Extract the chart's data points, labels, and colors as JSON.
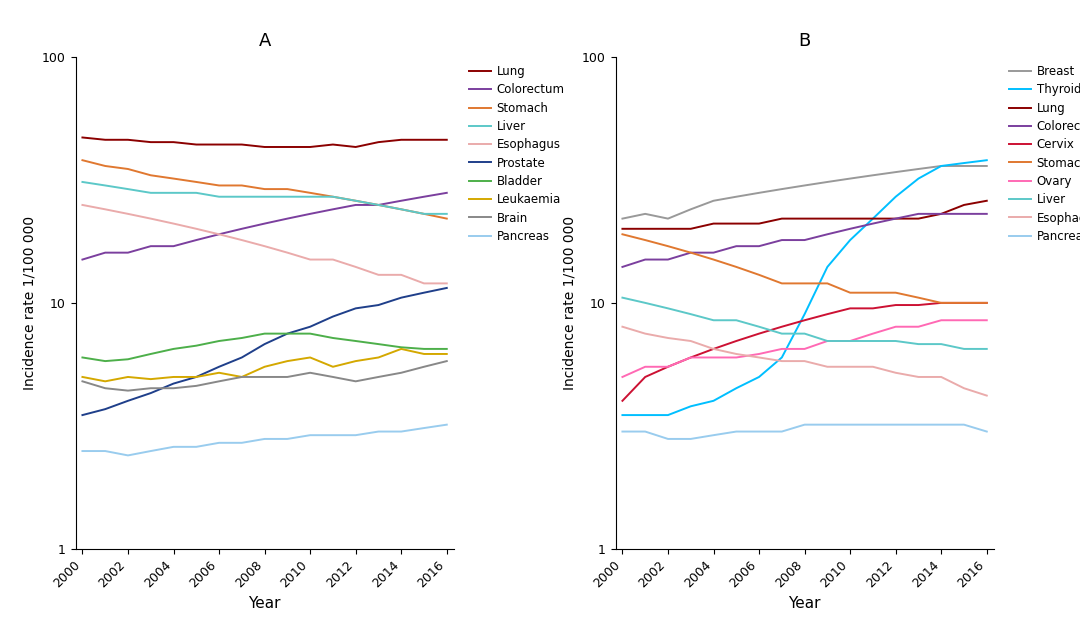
{
  "years": [
    2000,
    2001,
    2002,
    2003,
    2004,
    2005,
    2006,
    2007,
    2008,
    2009,
    2010,
    2011,
    2012,
    2013,
    2014,
    2015,
    2016
  ],
  "panel_A": {
    "title": "A",
    "ylabel": "Incidence rate 1/100 000",
    "xlabel": "Year",
    "series": {
      "Lung": [
        47,
        46,
        46,
        45,
        45,
        44,
        44,
        44,
        43,
        43,
        43,
        44,
        43,
        45,
        46,
        46,
        46
      ],
      "Colorectum": [
        15,
        16,
        16,
        17,
        17,
        18,
        19,
        20,
        21,
        22,
        23,
        24,
        25,
        25,
        26,
        27,
        28
      ],
      "Stomach": [
        38,
        36,
        35,
        33,
        32,
        31,
        30,
        30,
        29,
        29,
        28,
        27,
        26,
        25,
        24,
        23,
        22
      ],
      "Liver": [
        31,
        30,
        29,
        28,
        28,
        28,
        27,
        27,
        27,
        27,
        27,
        27,
        26,
        25,
        24,
        23,
        23
      ],
      "Esophagus": [
        25,
        24,
        23,
        22,
        21,
        20,
        19,
        18,
        17,
        16,
        15,
        15,
        14,
        13,
        13,
        12,
        12
      ],
      "Prostate": [
        3.5,
        3.7,
        4.0,
        4.3,
        4.7,
        5.0,
        5.5,
        6.0,
        6.8,
        7.5,
        8.0,
        8.8,
        9.5,
        9.8,
        10.5,
        11.0,
        11.5
      ],
      "Bladder": [
        6.0,
        5.8,
        5.9,
        6.2,
        6.5,
        6.7,
        7.0,
        7.2,
        7.5,
        7.5,
        7.5,
        7.2,
        7.0,
        6.8,
        6.6,
        6.5,
        6.5
      ],
      "Leukaemia": [
        5.0,
        4.8,
        5.0,
        4.9,
        5.0,
        5.0,
        5.2,
        5.0,
        5.5,
        5.8,
        6.0,
        5.5,
        5.8,
        6.0,
        6.5,
        6.2,
        6.2
      ],
      "Brain": [
        4.8,
        4.5,
        4.4,
        4.5,
        4.5,
        4.6,
        4.8,
        5.0,
        5.0,
        5.0,
        5.2,
        5.0,
        4.8,
        5.0,
        5.2,
        5.5,
        5.8
      ],
      "Pancreas": [
        2.5,
        2.5,
        2.4,
        2.5,
        2.6,
        2.6,
        2.7,
        2.7,
        2.8,
        2.8,
        2.9,
        2.9,
        2.9,
        3.0,
        3.0,
        3.1,
        3.2
      ]
    },
    "colors": {
      "Lung": "#8B0000",
      "Colorectum": "#7B3F9E",
      "Stomach": "#E07830",
      "Liver": "#5CC8C8",
      "Esophagus": "#EAABAB",
      "Prostate": "#1F3F8A",
      "Bladder": "#4DAF4A",
      "Leukaemia": "#D4A800",
      "Brain": "#888888",
      "Pancreas": "#99CCEE"
    }
  },
  "panel_B": {
    "title": "B",
    "ylabel": "Incidence rate 1/100 000",
    "xlabel": "Year",
    "series": {
      "Breast": [
        22,
        23,
        22,
        24,
        26,
        27,
        28,
        29,
        30,
        31,
        32,
        33,
        34,
        35,
        36,
        36,
        36
      ],
      "Thyroid": [
        3.5,
        3.5,
        3.5,
        3.8,
        4.0,
        4.5,
        5.0,
        6.0,
        9.0,
        14,
        18,
        22,
        27,
        32,
        36,
        37,
        38
      ],
      "Lung": [
        20,
        20,
        20,
        20,
        21,
        21,
        21,
        22,
        22,
        22,
        22,
        22,
        22,
        22,
        23,
        25,
        26
      ],
      "Colorectum": [
        14,
        15,
        15,
        16,
        16,
        17,
        17,
        18,
        18,
        19,
        20,
        21,
        22,
        23,
        23,
        23,
        23
      ],
      "Cervix": [
        4.0,
        5.0,
        5.5,
        6.0,
        6.5,
        7.0,
        7.5,
        8.0,
        8.5,
        9.0,
        9.5,
        9.5,
        9.8,
        9.8,
        10.0,
        10.0,
        10.0
      ],
      "Stomach": [
        19,
        18,
        17,
        16,
        15,
        14,
        13,
        12,
        12,
        12,
        11,
        11,
        11,
        10.5,
        10.0,
        10.0,
        10.0
      ],
      "Ovary": [
        5.0,
        5.5,
        5.5,
        6.0,
        6.0,
        6.0,
        6.2,
        6.5,
        6.5,
        7.0,
        7.0,
        7.5,
        8.0,
        8.0,
        8.5,
        8.5,
        8.5
      ],
      "Liver": [
        10.5,
        10.0,
        9.5,
        9.0,
        8.5,
        8.5,
        8.0,
        7.5,
        7.5,
        7.0,
        7.0,
        7.0,
        7.0,
        6.8,
        6.8,
        6.5,
        6.5
      ],
      "Esophagus": [
        8.0,
        7.5,
        7.2,
        7.0,
        6.5,
        6.2,
        6.0,
        5.8,
        5.8,
        5.5,
        5.5,
        5.5,
        5.2,
        5.0,
        5.0,
        4.5,
        4.2
      ],
      "Pancreas": [
        3.0,
        3.0,
        2.8,
        2.8,
        2.9,
        3.0,
        3.0,
        3.0,
        3.2,
        3.2,
        3.2,
        3.2,
        3.2,
        3.2,
        3.2,
        3.2,
        3.0
      ]
    },
    "colors": {
      "Breast": "#999999",
      "Thyroid": "#00BFFF",
      "Lung": "#8B0000",
      "Colorectum": "#7B3F9E",
      "Cervix": "#CC1133",
      "Stomach": "#E07830",
      "Ovary": "#FF69B4",
      "Liver": "#5CC8C8",
      "Esophagus": "#EAABAB",
      "Pancreas": "#99CCEE"
    }
  },
  "background_color": "#FFFFFF",
  "ylim": [
    1,
    100
  ],
  "yticks": [
    1,
    10,
    100
  ],
  "xticks": [
    2000,
    2002,
    2004,
    2006,
    2008,
    2010,
    2012,
    2014,
    2016
  ]
}
